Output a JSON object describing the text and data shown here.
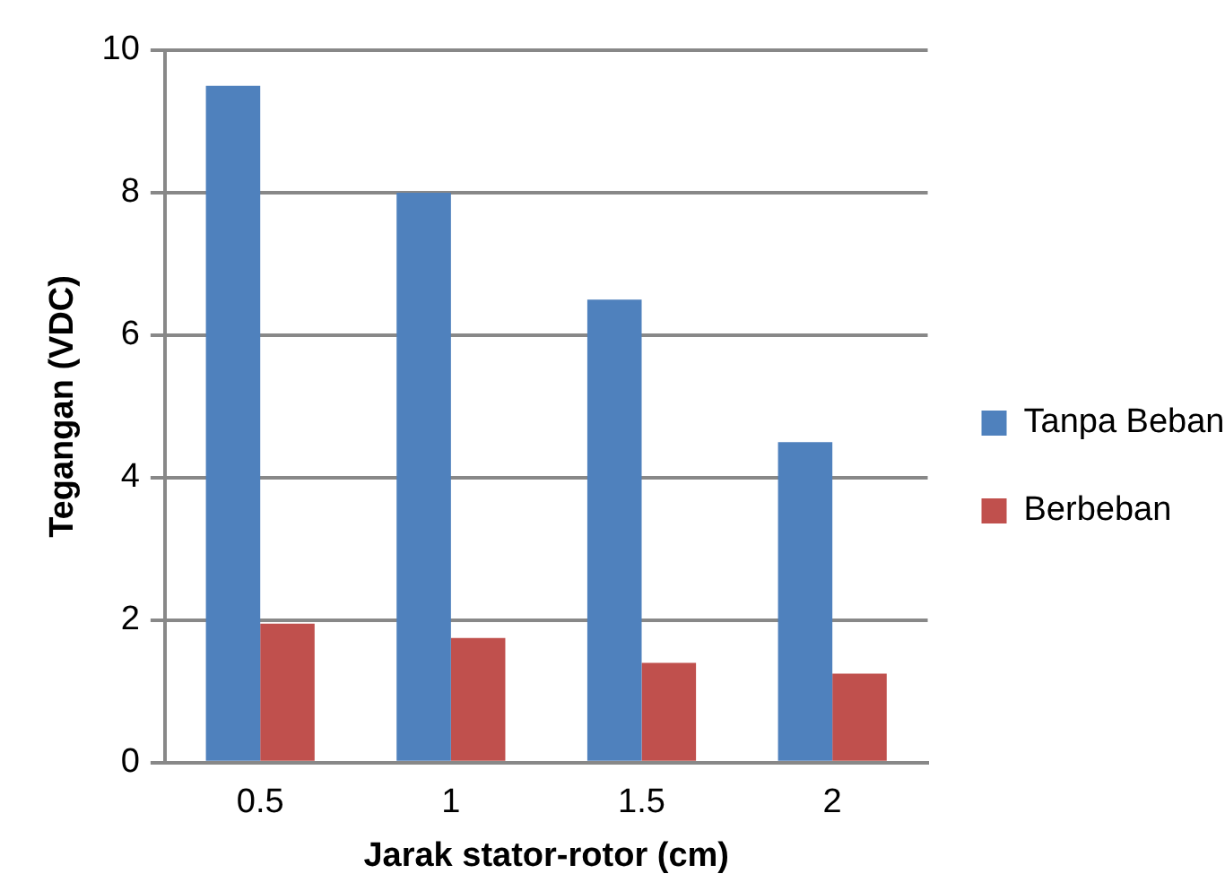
{
  "chart_data": {
    "type": "bar",
    "xlabel": "Jarak stator-rotor (cm)",
    "ylabel": "Tegangan (VDC)",
    "categories": [
      "0.5",
      "1",
      "1.5",
      "2"
    ],
    "series": [
      {
        "name": "Tanpa Beban",
        "color": "#4f81bd",
        "values": [
          9.5,
          8,
          6.5,
          4.5
        ]
      },
      {
        "name": "Berbeban",
        "color": "#c0504d",
        "values": [
          1.95,
          1.75,
          1.4,
          1.25
        ]
      }
    ],
    "ylim": [
      0,
      10
    ],
    "yticks": [
      0,
      2,
      4,
      6,
      8,
      10
    ],
    "grid": "y",
    "legend": "right"
  }
}
